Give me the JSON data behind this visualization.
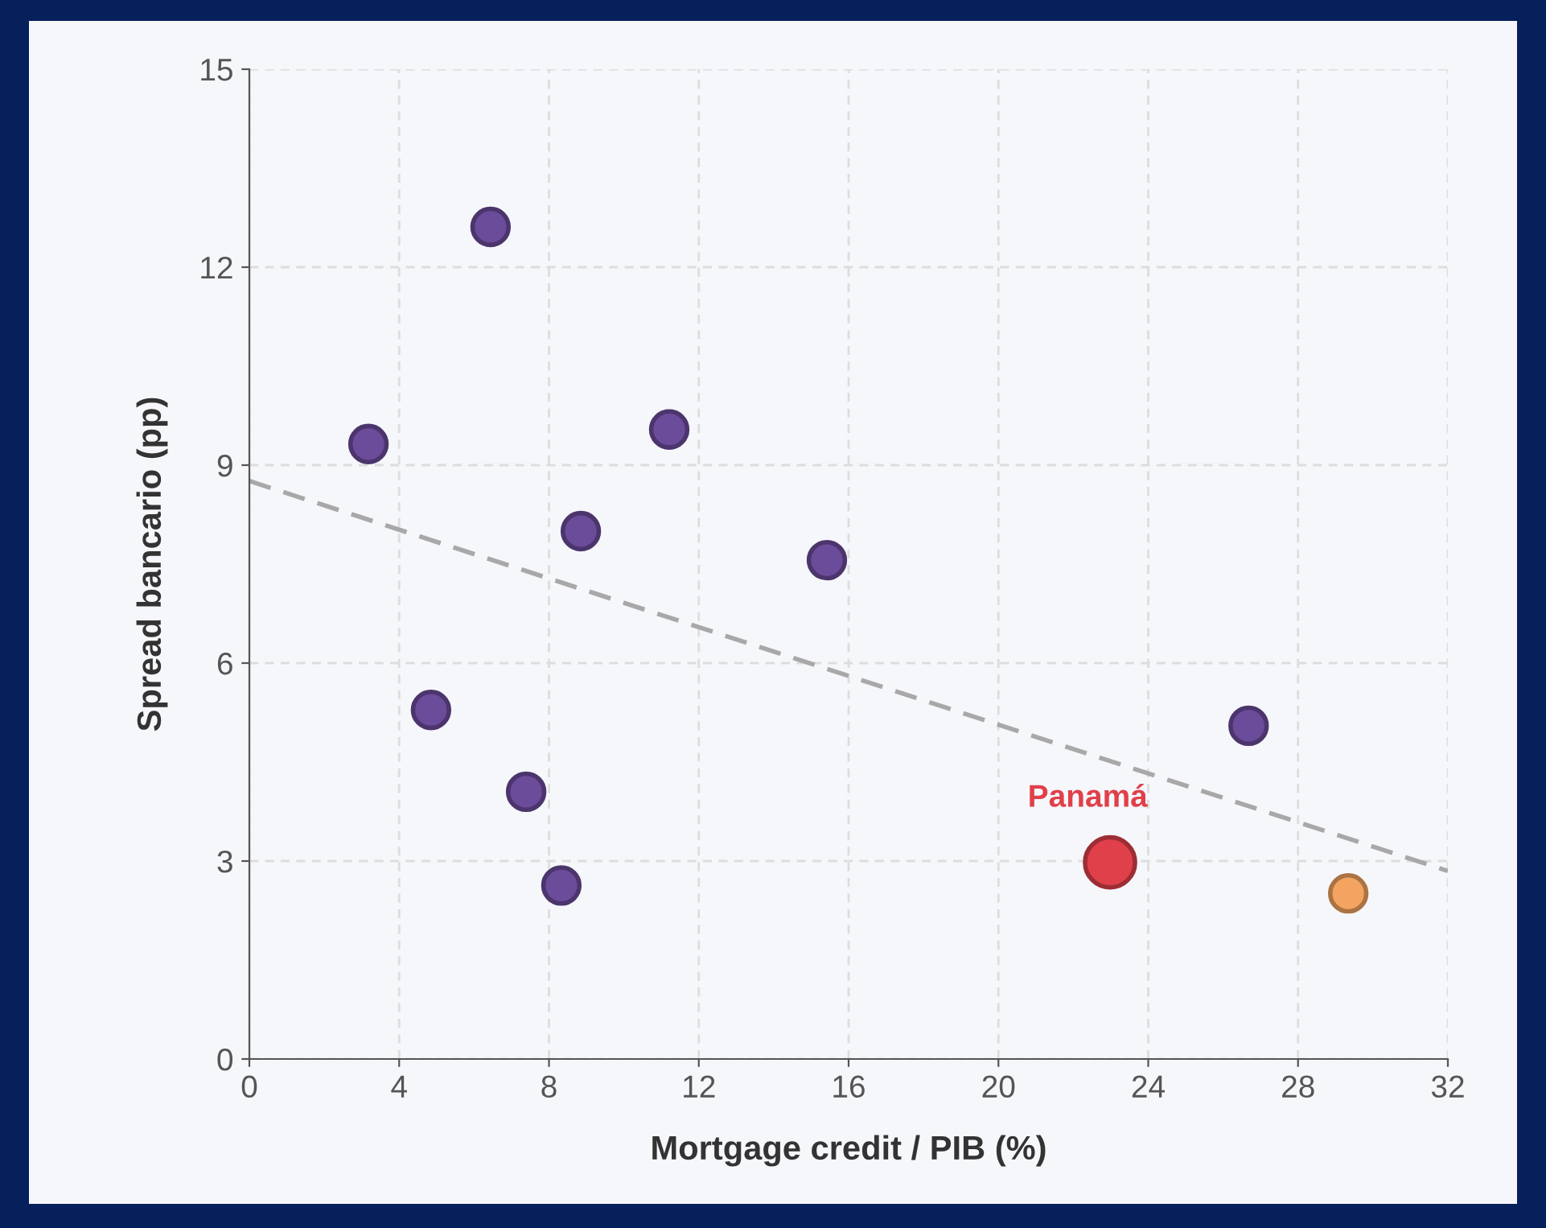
{
  "chart_data": {
    "type": "scatter",
    "xlabel": "Mortgage credit / PIB (%)",
    "ylabel": "Spread bancario (pp)",
    "xlim": [
      0,
      32
    ],
    "xticks": [
      0,
      4,
      8,
      12,
      16,
      20,
      24,
      28,
      32
    ],
    "ylim": [
      0,
      15
    ],
    "yticks": [
      0,
      3,
      6,
      9,
      12,
      15
    ],
    "grid": true,
    "marker": "circle",
    "series": [
      {
        "type": "line",
        "marker": "none",
        "line_style": "dashed",
        "color": "#a8a8a8",
        "x": [
          0,
          32
        ],
        "values": [
          8.76,
          2.85
        ]
      },
      {
        "color": "#6b4c9a",
        "x": [
          3.18,
          6.44,
          11.21,
          8.85,
          15.42,
          4.85,
          7.39,
          8.33,
          26.68
        ],
        "values": [
          9.32,
          12.61,
          9.54,
          8.0,
          7.56,
          5.29,
          4.05,
          2.63,
          5.05
        ]
      },
      {
        "name": "Panamá",
        "color": "#e0404a",
        "x": [
          22.98
        ],
        "values": [
          2.98
        ]
      },
      {
        "color": "#f4a460",
        "x": [
          29.34
        ],
        "values": [
          2.51
        ]
      }
    ]
  }
}
